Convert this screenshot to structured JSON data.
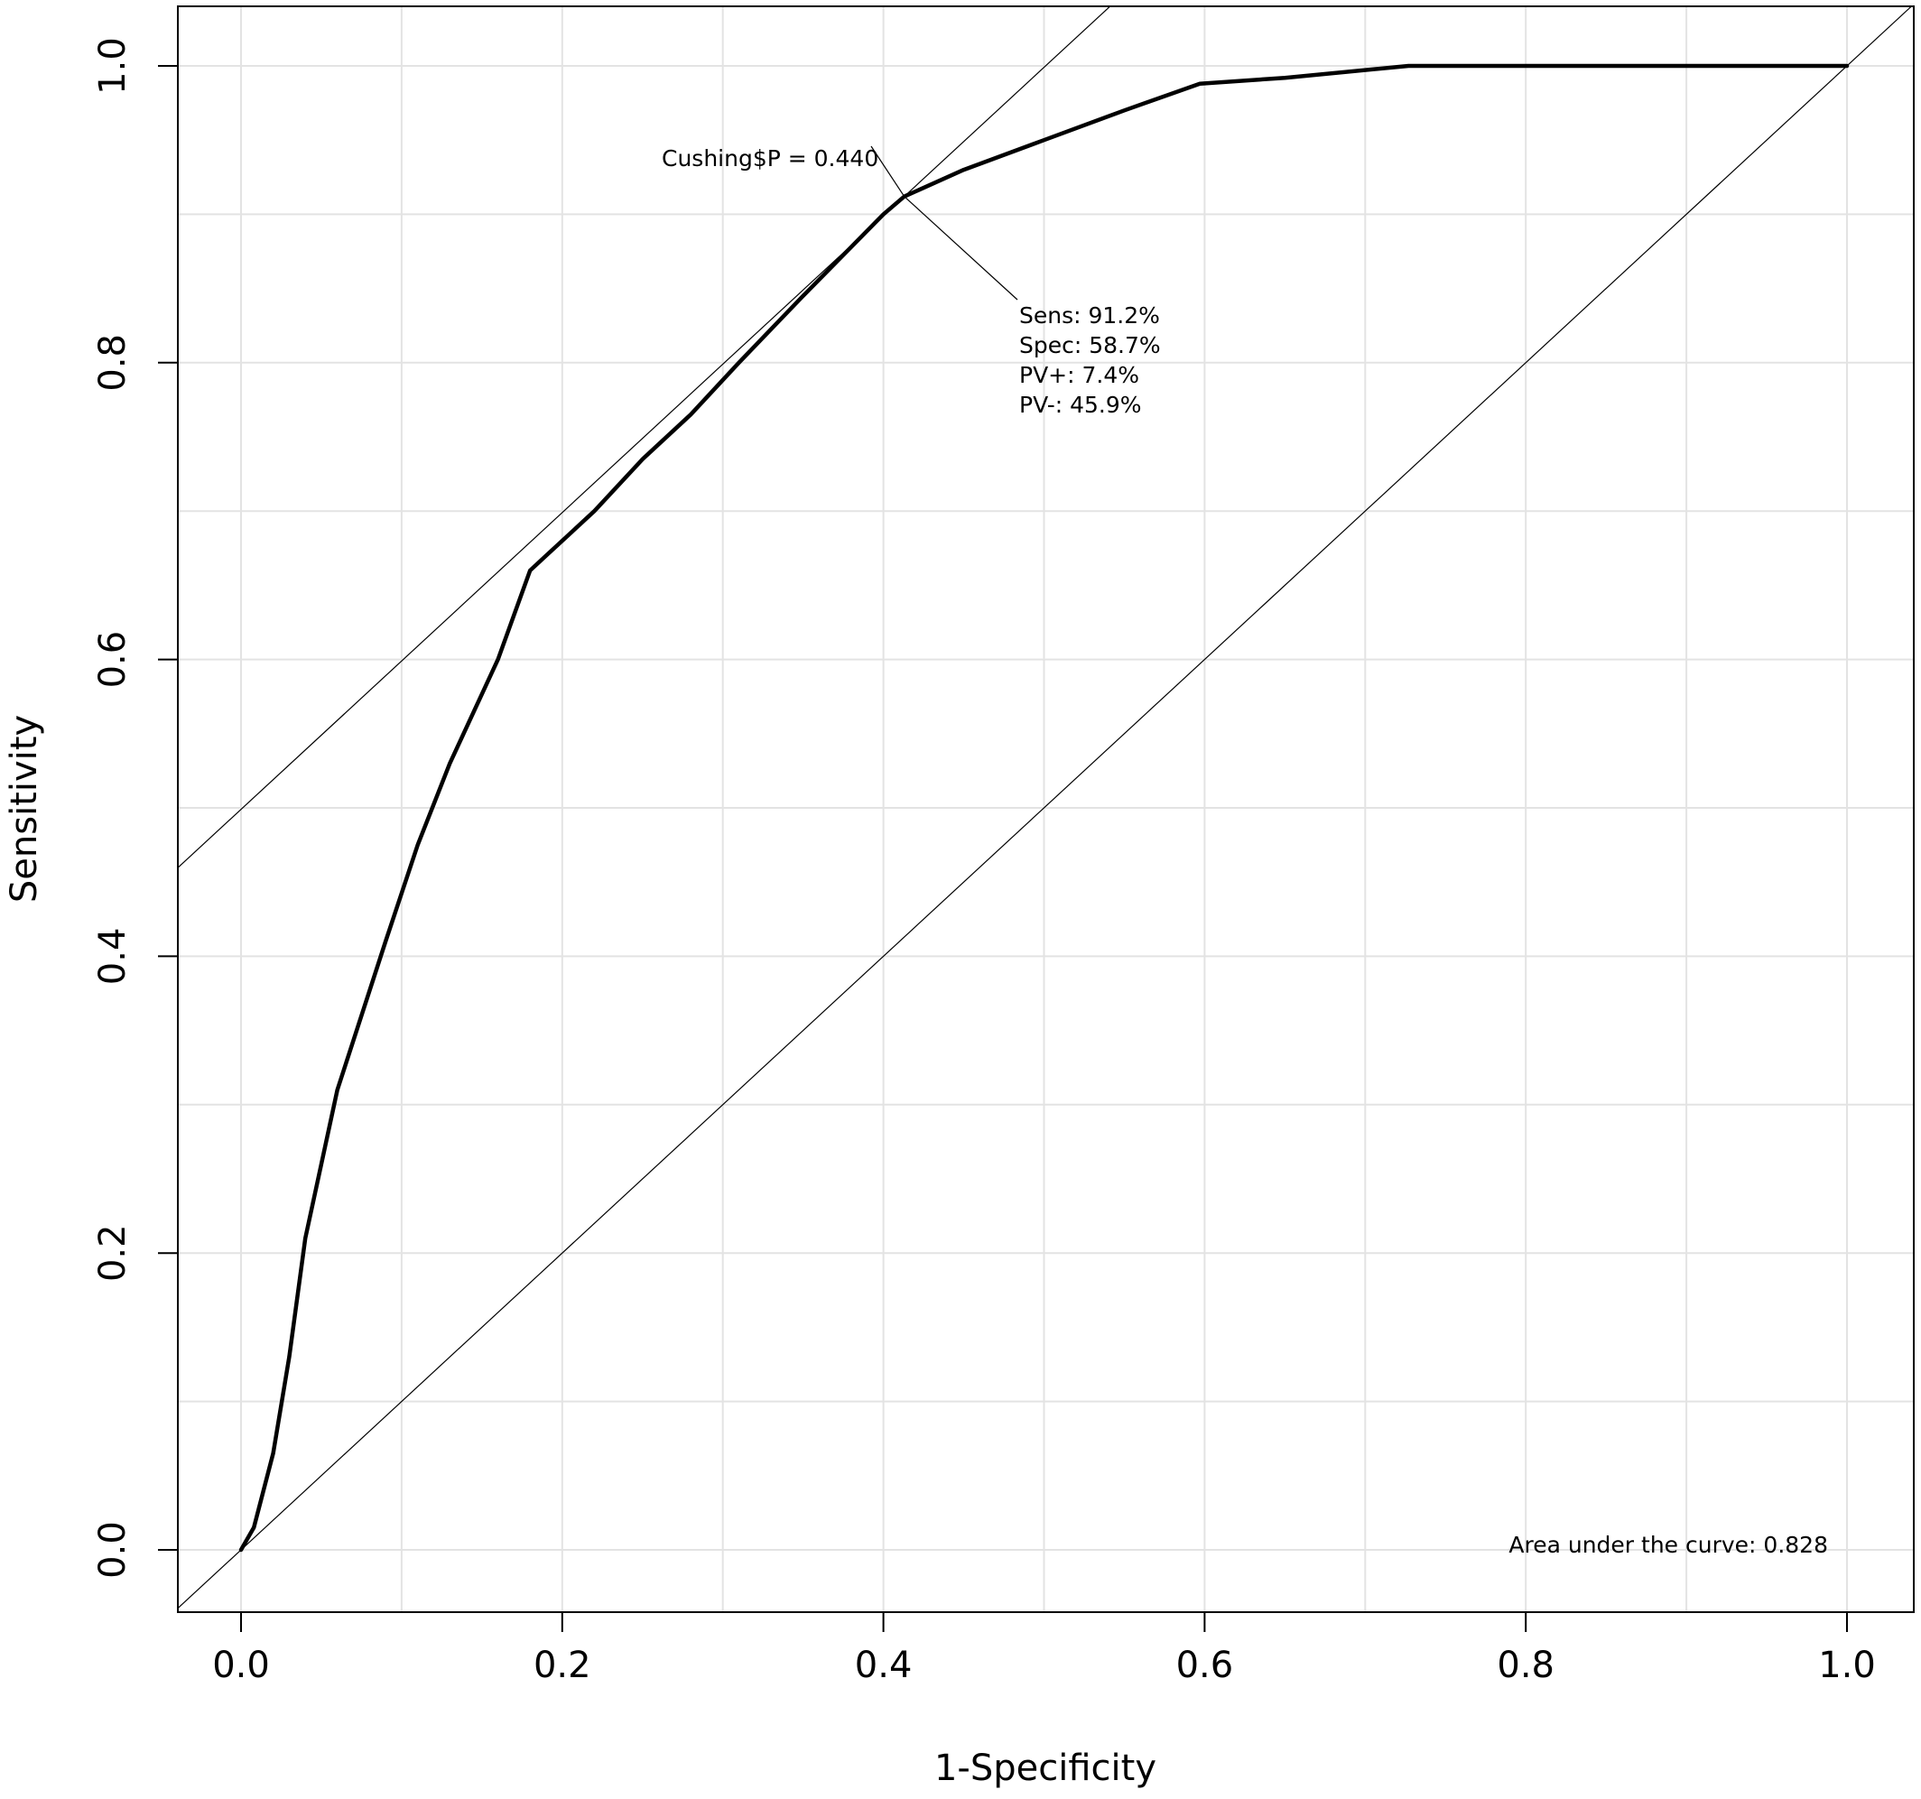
{
  "chart_data": {
    "type": "line",
    "title": "",
    "xlabel": "1-Specificity",
    "ylabel": "Sensitivity",
    "xlim": [
      -0.04,
      1.04
    ],
    "ylim": [
      -0.04,
      1.04
    ],
    "grid": true,
    "x_ticks": [
      "0.0",
      "0.2",
      "0.4",
      "0.6",
      "0.8",
      "1.0"
    ],
    "y_ticks": [
      "0.0",
      "0.2",
      "0.4",
      "0.6",
      "0.8",
      "1.0"
    ],
    "series": [
      {
        "x": [
          0.0,
          0.008,
          0.02,
          0.03,
          0.04,
          0.06,
          0.09,
          0.11,
          0.13,
          0.16,
          0.18,
          0.19,
          0.22,
          0.25,
          0.28,
          0.31,
          0.35,
          0.4,
          0.413,
          0.45,
          0.5,
          0.55,
          0.597,
          0.65,
          0.727,
          0.8,
          0.9,
          1.0
        ],
        "y": [
          0.0,
          0.015,
          0.065,
          0.13,
          0.21,
          0.31,
          0.41,
          0.475,
          0.53,
          0.6,
          0.66,
          0.67,
          0.7,
          0.735,
          0.765,
          0.8,
          0.845,
          0.9,
          0.912,
          0.93,
          0.95,
          0.97,
          0.988,
          0.992,
          1.0,
          1.0,
          1.0,
          1.0
        ]
      }
    ],
    "reference_lines": [
      {
        "kind": "diagonal",
        "slope": 1,
        "intercept": 0
      },
      {
        "kind": "tangent",
        "slope": 1,
        "intercept": 0.499
      }
    ],
    "cutoff_point": {
      "x": 0.413,
      "y": 0.912
    },
    "annotations": {
      "cutoff_label": "Cushing$P = 0.440",
      "stats": [
        "Sens: 91.2%",
        "Spec: 58.7%",
        "PV+: 7.4%",
        "PV-: 45.9%"
      ],
      "auc": "Area under the curve: 0.828"
    }
  }
}
